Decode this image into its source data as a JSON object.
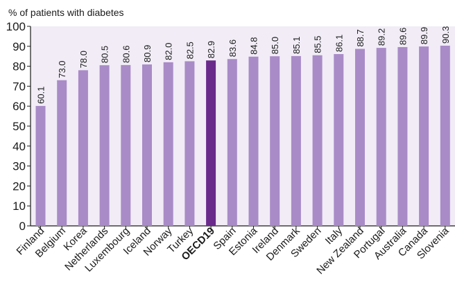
{
  "chart_data": {
    "type": "bar",
    "ylabel": "% of patients with diabetes",
    "ylim": [
      0,
      100
    ],
    "yticks": [
      0,
      10,
      20,
      30,
      40,
      50,
      60,
      70,
      80,
      90,
      100
    ],
    "grid": false,
    "categories": [
      "Finland",
      "Belgium",
      "Korea",
      "Netherlands",
      "Luxembourg",
      "Iceland",
      "Norway",
      "Turkey",
      "OECD19",
      "Spain",
      "Estonia",
      "Ireland",
      "Denmark",
      "Sweden",
      "Italy",
      "New Zealand",
      "Portugal",
      "Australia",
      "Canada",
      "Slovenia"
    ],
    "values": [
      60.1,
      73.0,
      78.0,
      80.5,
      80.6,
      80.9,
      82.0,
      82.5,
      82.9,
      83.6,
      84.8,
      85.0,
      85.1,
      85.5,
      86.1,
      88.7,
      89.2,
      89.6,
      89.9,
      90.3
    ],
    "value_labels": [
      "60.1",
      "73.0",
      "78.0",
      "80.5",
      "80.6",
      "80.9",
      "82.0",
      "82.5",
      "82.9",
      "83.6",
      "84.8",
      "85.0",
      "85.1",
      "85.5",
      "86.1",
      "88.7",
      "89.2",
      "89.6",
      "89.9",
      "90.3"
    ],
    "highlight_category": "OECD19",
    "colors": {
      "bar": "#a98bc7",
      "highlight": "#6a2a8c",
      "plot_background": "#f1ecf6",
      "text": "#1a1a1a"
    }
  }
}
